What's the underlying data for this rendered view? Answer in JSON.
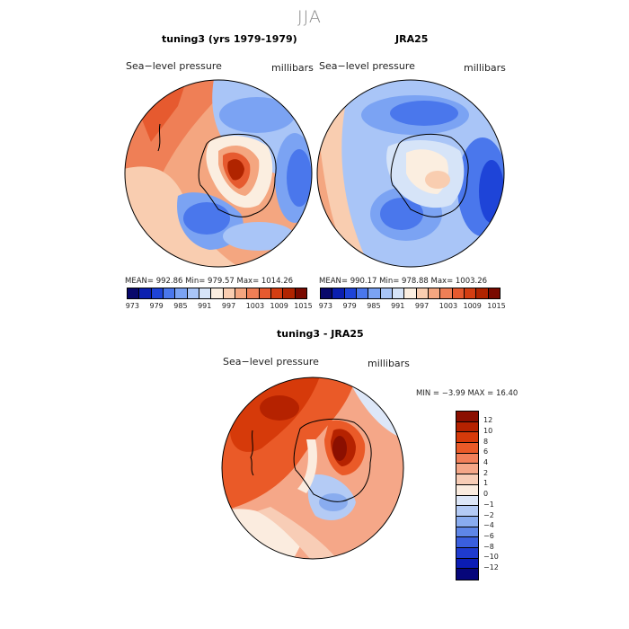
{
  "season": "JJA",
  "panels": [
    {
      "title": "tuning3 (yrs 1979-1979)",
      "field_label": "Sea−level pressure",
      "units": "millibars",
      "stats": "MEAN= 992.86   Min= 979.57   Max= 1014.26"
    },
    {
      "title": "JRA25",
      "field_label": "Sea−level pressure",
      "units": "millibars",
      "stats": "MEAN= 990.17   Min= 978.88   Max= 1003.26"
    },
    {
      "title": "tuning3 - JRA25",
      "field_label": "Sea−level pressure",
      "units": "millibars",
      "stats": "MIN =   −3.99  MAX =   16.40"
    }
  ],
  "abs_colorbar": {
    "colors": [
      "#08086b",
      "#0a1fb0",
      "#1e44d8",
      "#4a77ec",
      "#7ba3f3",
      "#a9c5f7",
      "#d6e4f8",
      "#fbeee0",
      "#f9cdb0",
      "#f4a680",
      "#ef7f56",
      "#e65a2f",
      "#d43e12",
      "#b02400",
      "#7a0a00"
    ],
    "ticks": [
      "973",
      "979",
      "985",
      "991",
      "997",
      "1003",
      "1009",
      "1015"
    ]
  },
  "diff_colorbar": {
    "colors": [
      "#8b0f00",
      "#b52200",
      "#d63a0a",
      "#ea5a28",
      "#f2805a",
      "#f5a788",
      "#f8cdb6",
      "#fbecdf",
      "#dde7f8",
      "#b4cbf5",
      "#89acef",
      "#5e86e7",
      "#3a5fde",
      "#1f3bcf",
      "#0b1cb4",
      "#06067a"
    ],
    "ticks": [
      "12",
      "10",
      "8",
      "6",
      "4",
      "2",
      "1",
      "0",
      "−1",
      "−2",
      "−4",
      "−6",
      "−8",
      "−10",
      "−12"
    ]
  }
}
